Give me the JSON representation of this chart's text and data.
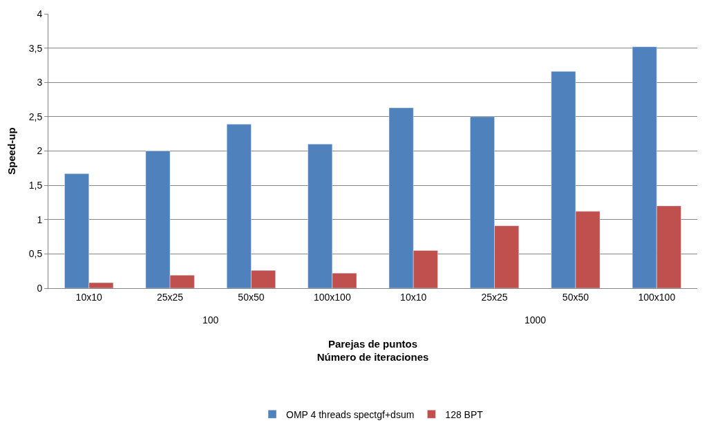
{
  "chart_data": {
    "type": "bar",
    "ylabel": "Speed-up",
    "xlabel": "Parejas de puntos\nNúmero de iteraciones",
    "categories": [
      "10x10",
      "25x25",
      "50x50",
      "100x100",
      "10x10",
      "25x25",
      "50x50",
      "100x100"
    ],
    "series": [
      {
        "name": "OMP 4 threads spectgf+dsum",
        "color": "#4f81bd",
        "values": [
          1.67,
          2.0,
          2.39,
          2.1,
          2.63,
          2.5,
          3.16,
          3.52
        ]
      },
      {
        "name": "128 BPT",
        "color": "#c0504d",
        "values": [
          0.08,
          0.19,
          0.26,
          0.22,
          0.55,
          0.91,
          1.12,
          1.2
        ]
      }
    ],
    "annotations": [
      "100",
      "1000"
    ],
    "ylim": [
      0,
      4
    ],
    "yticks": [
      0,
      {
        "value": 0.5,
        "label": "0,5"
      },
      1,
      {
        "value": 1.5,
        "label": "1,5"
      },
      2,
      {
        "value": 2.5,
        "label": "2,5"
      },
      3,
      {
        "value": 3.5,
        "label": "3,5"
      },
      4
    ],
    "grid": "y",
    "legend": "bottom"
  }
}
